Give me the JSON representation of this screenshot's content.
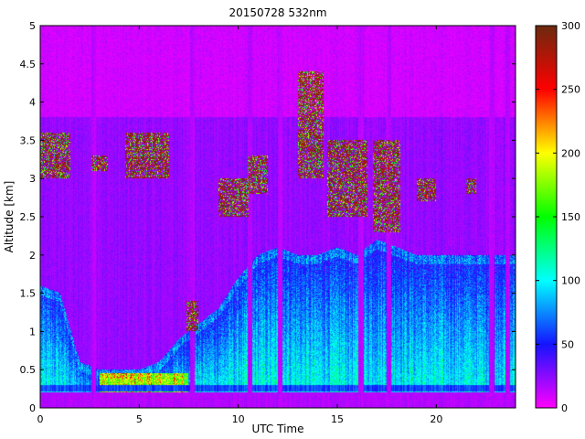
{
  "chart_data": {
    "type": "heatmap",
    "title": "20150728 532nm",
    "xlabel": "UTC Time",
    "ylabel": "Altitude [km]",
    "xlim": [
      0,
      24
    ],
    "ylim": [
      0,
      5
    ],
    "x_ticks": [
      0,
      5,
      10,
      15,
      20
    ],
    "y_ticks": [
      0,
      0.5,
      1,
      1.5,
      2,
      2.5,
      3,
      3.5,
      4,
      4.5,
      5
    ],
    "y_tick_labels": [
      "0",
      "0.5",
      "1",
      "1.5",
      "2",
      "2.5",
      "3",
      "3.5",
      "4",
      "4.5",
      "5"
    ],
    "colorbar": {
      "range": [
        0,
        300
      ],
      "ticks": [
        0,
        50,
        100,
        150,
        200,
        250,
        300
      ],
      "colormap": "magenta-blue-cyan-green-yellow-red-brown",
      "stops": [
        {
          "value": 0,
          "color": "#ff00ff"
        },
        {
          "value": 50,
          "color": "#1414ff"
        },
        {
          "value": 100,
          "color": "#00ffff"
        },
        {
          "value": 150,
          "color": "#00ff00"
        },
        {
          "value": 200,
          "color": "#ffff00"
        },
        {
          "value": 250,
          "color": "#ff0000"
        },
        {
          "value": 300,
          "color": "#6a2a0e"
        }
      ]
    },
    "features": {
      "surface_layer": {
        "altitude_km": [
          0.22,
          0.3
        ],
        "value": 55
      },
      "boundary_layer_top_km": {
        "time_h": [
          0,
          1,
          2,
          3,
          4,
          5,
          6,
          7,
          8,
          9,
          10,
          11,
          12,
          13,
          14,
          15,
          16,
          17,
          18,
          19,
          20,
          21,
          22,
          23,
          24
        ],
        "altitude_km": [
          1.6,
          1.5,
          0.6,
          0.5,
          0.5,
          0.5,
          0.6,
          0.9,
          1.1,
          1.3,
          1.7,
          2.0,
          2.1,
          2.0,
          2.0,
          2.1,
          2.0,
          2.2,
          2.1,
          2.0,
          2.0,
          2.0,
          2.0,
          2.0,
          2.0
        ]
      },
      "cloud_layers": [
        {
          "time_h": [
            0,
            1.5
          ],
          "altitude_km": [
            3.0,
            3.6
          ]
        },
        {
          "time_h": [
            2.6,
            3.4
          ],
          "altitude_km": [
            3.1,
            3.3
          ]
        },
        {
          "time_h": [
            4.3,
            6.5
          ],
          "altitude_km": [
            3.0,
            3.6
          ]
        },
        {
          "time_h": [
            7.4,
            8.0
          ],
          "altitude_km": [
            1.0,
            1.4
          ]
        },
        {
          "time_h": [
            9.0,
            10.5
          ],
          "altitude_km": [
            2.5,
            3.0
          ]
        },
        {
          "time_h": [
            10.5,
            11.5
          ],
          "altitude_km": [
            2.8,
            3.3
          ]
        },
        {
          "time_h": [
            13.0,
            14.3
          ],
          "altitude_km": [
            3.0,
            4.4
          ]
        },
        {
          "time_h": [
            14.5,
            16.5
          ],
          "altitude_km": [
            2.5,
            3.5
          ]
        },
        {
          "time_h": [
            16.8,
            18.2
          ],
          "altitude_km": [
            2.3,
            3.5
          ]
        },
        {
          "time_h": [
            19.0,
            20.0
          ],
          "altitude_km": [
            2.7,
            3.0
          ]
        },
        {
          "time_h": [
            21.5,
            22.0
          ],
          "altitude_km": [
            2.8,
            3.0
          ]
        }
      ],
      "gaps_utc_h": [
        2.7,
        7.7,
        10.6,
        12.1,
        16.2,
        17.6,
        22.8,
        23.6
      ]
    }
  }
}
